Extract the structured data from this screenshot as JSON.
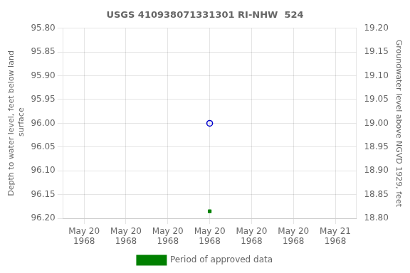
{
  "chart_data": {
    "type": "scatter",
    "title": "USGS 410938071331301 RI-NHW  524",
    "ylabel": "Depth to water level, feet below land\n surface",
    "y2label": "Groundwater level above NGVD 1929, feet",
    "x": [
      12
    ],
    "xlim": [
      -2,
      26
    ],
    "xticks": [
      {
        "value": 0,
        "label": "May 20\n1968"
      },
      {
        "value": 4,
        "label": "May 20\n1968"
      },
      {
        "value": 8,
        "label": "May 20\n1968"
      },
      {
        "value": 12,
        "label": "May 20\n1968"
      },
      {
        "value": 16,
        "label": "May 20\n1968"
      },
      {
        "value": 20,
        "label": "May 20\n1968"
      },
      {
        "value": 24,
        "label": "May 21\n1968"
      }
    ],
    "ylim": [
      96.2,
      95.8
    ],
    "yticks": [
      {
        "value": 95.8,
        "label": "95.80"
      },
      95.85,
      {
        "value": 95.9,
        "label": "95.90"
      },
      95.95,
      {
        "value": 96.0,
        "label": "96.00"
      },
      96.05,
      {
        "value": 96.1,
        "label": "96.10"
      },
      96.15,
      {
        "value": 96.2,
        "label": "96.20"
      }
    ],
    "y2lim": [
      18.8,
      19.2
    ],
    "y2ticks": [
      {
        "value": 18.8,
        "label": "18.80"
      },
      18.85,
      {
        "value": 18.9,
        "label": "18.90"
      },
      18.95,
      {
        "value": 19.0,
        "label": "19.00"
      },
      19.05,
      {
        "value": 19.1,
        "label": "19.10"
      },
      19.15,
      {
        "value": 19.2,
        "label": "19.20"
      }
    ],
    "series": [
      {
        "color": "#0000cc",
        "marker": "open_circle",
        "values": [
          96.0
        ]
      },
      {
        "color": "#008000",
        "marker": "square",
        "values": [
          96.185
        ]
      },
      {
        "name": "Period of approved data",
        "type": "line",
        "line_style": "solid",
        "color": "#008000",
        "values": [
          null
        ]
      }
    ],
    "grid": true,
    "legend": "bottom"
  }
}
